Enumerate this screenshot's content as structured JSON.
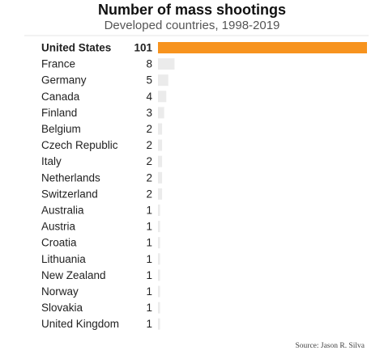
{
  "title": "Number of mass shootings",
  "subtitle": "Developed countries, 1998-2019",
  "source": "Source: Jason R. Silva",
  "colors": {
    "highlight": "#f7931e",
    "bar": "#ebebeb",
    "text": "#222222"
  },
  "chart_data": {
    "type": "bar",
    "orientation": "horizontal",
    "title": "Number of mass shootings",
    "subtitle": "Developed countries, 1998-2019",
    "categories": [
      "United States",
      "France",
      "Germany",
      "Canada",
      "Finland",
      "Belgium",
      "Czech Republic",
      "Italy",
      "Netherlands",
      "Switzerland",
      "Australia",
      "Austria",
      "Croatia",
      "Lithuania",
      "New Zealand",
      "Norway",
      "Slovakia",
      "United Kingdom"
    ],
    "values": [
      101,
      8,
      5,
      4,
      3,
      2,
      2,
      2,
      2,
      2,
      1,
      1,
      1,
      1,
      1,
      1,
      1,
      1
    ],
    "highlight": "United States",
    "xlim": [
      0,
      101
    ],
    "grid": false,
    "legend": "none"
  }
}
